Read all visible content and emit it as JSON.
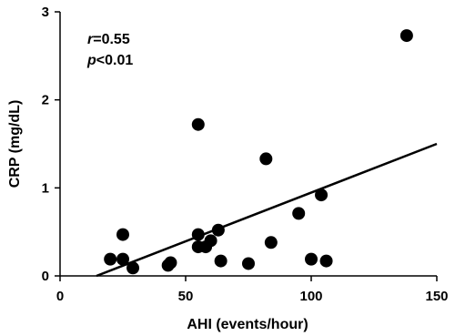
{
  "chart_data": {
    "type": "scatter",
    "xlabel": "AHI (events/hour)",
    "ylabel": "CRP (mg/dL)",
    "xlim": [
      0,
      150
    ],
    "ylim": [
      0,
      3
    ],
    "xticks": [
      "0",
      "50",
      "100",
      "150"
    ],
    "yticks": [
      "0",
      "1",
      "2",
      "3"
    ],
    "grid": false,
    "annotations": {
      "r_symbol": "r",
      "r_value": "=0.55",
      "p_symbol": "p",
      "p_value": "<0.01"
    },
    "points": [
      {
        "x": 20,
        "y": 0.19
      },
      {
        "x": 25,
        "y": 0.47
      },
      {
        "x": 25,
        "y": 0.19
      },
      {
        "x": 29,
        "y": 0.09
      },
      {
        "x": 43,
        "y": 0.12
      },
      {
        "x": 44,
        "y": 0.15
      },
      {
        "x": 55,
        "y": 1.72
      },
      {
        "x": 55,
        "y": 0.47
      },
      {
        "x": 55,
        "y": 0.33
      },
      {
        "x": 58,
        "y": 0.33
      },
      {
        "x": 60,
        "y": 0.4
      },
      {
        "x": 63,
        "y": 0.52
      },
      {
        "x": 64,
        "y": 0.17
      },
      {
        "x": 75,
        "y": 0.14
      },
      {
        "x": 82,
        "y": 1.33
      },
      {
        "x": 84,
        "y": 0.38
      },
      {
        "x": 95,
        "y": 0.71
      },
      {
        "x": 100,
        "y": 0.19
      },
      {
        "x": 104,
        "y": 0.92
      },
      {
        "x": 106,
        "y": 0.17
      },
      {
        "x": 138,
        "y": 2.73
      }
    ],
    "trendline": {
      "x": [
        14.5,
        150
      ],
      "y": [
        0,
        1.5
      ]
    }
  }
}
